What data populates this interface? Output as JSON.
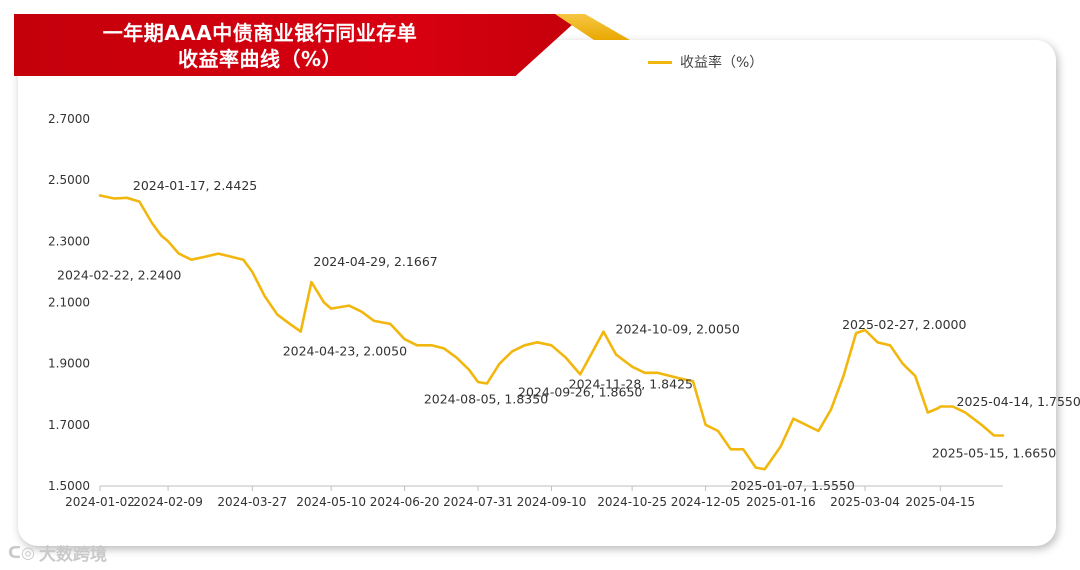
{
  "header": {
    "title_line1": "一年期AAA中债商业银行同业存单",
    "title_line2": "收益率曲线（%）"
  },
  "legend": {
    "label": "收益率（%）",
    "color": "#f2b70e"
  },
  "watermark": {
    "text": "大数跨境"
  },
  "chart_data": {
    "type": "line",
    "title": "一年期AAA中债商业银行同业存单收益率曲线（%）",
    "ylim": [
      1.5,
      2.7
    ],
    "y_ticks": [
      "2.7000",
      "2.5000",
      "2.3000",
      "2.1000",
      "1.9000",
      "1.7000",
      "1.5000"
    ],
    "x_ticks": [
      "2024-01-02",
      "2024-02-09",
      "2024-03-27",
      "2024-05-10",
      "2024-06-20",
      "2024-07-31",
      "2024-09-10",
      "2024-10-25",
      "2024-12-05",
      "2025-01-16",
      "2025-03-04",
      "2025-04-15"
    ],
    "grid": false,
    "legend_position": "top-right",
    "series": [
      {
        "name": "收益率（%）",
        "color": "#f2b70e",
        "x": [
          "2024-01-02",
          "2024-01-10",
          "2024-01-17",
          "2024-01-24",
          "2024-01-31",
          "2024-02-05",
          "2024-02-09",
          "2024-02-15",
          "2024-02-22",
          "2024-03-01",
          "2024-03-08",
          "2024-03-15",
          "2024-03-22",
          "2024-03-27",
          "2024-04-03",
          "2024-04-10",
          "2024-04-17",
          "2024-04-23",
          "2024-04-29",
          "2024-05-06",
          "2024-05-10",
          "2024-05-20",
          "2024-05-27",
          "2024-06-03",
          "2024-06-12",
          "2024-06-20",
          "2024-06-27",
          "2024-07-05",
          "2024-07-12",
          "2024-07-19",
          "2024-07-26",
          "2024-07-31",
          "2024-08-05",
          "2024-08-12",
          "2024-08-19",
          "2024-08-26",
          "2024-09-02",
          "2024-09-10",
          "2024-09-18",
          "2024-09-26",
          "2024-10-09",
          "2024-10-16",
          "2024-10-25",
          "2024-11-01",
          "2024-11-08",
          "2024-11-15",
          "2024-11-22",
          "2024-11-28",
          "2024-12-05",
          "2024-12-12",
          "2024-12-19",
          "2024-12-26",
          "2025-01-02",
          "2025-01-07",
          "2025-01-16",
          "2025-01-23",
          "2025-02-06",
          "2025-02-13",
          "2025-02-20",
          "2025-02-27",
          "2025-03-04",
          "2025-03-11",
          "2025-03-18",
          "2025-03-25",
          "2025-04-01",
          "2025-04-08",
          "2025-04-14",
          "2025-04-15",
          "2025-04-22",
          "2025-04-29",
          "2025-05-08",
          "2025-05-15",
          "2025-05-20"
        ],
        "values": [
          2.45,
          2.44,
          2.4425,
          2.43,
          2.36,
          2.32,
          2.3,
          2.26,
          2.24,
          2.25,
          2.26,
          2.25,
          2.24,
          2.2,
          2.12,
          2.06,
          2.03,
          2.005,
          2.1667,
          2.1,
          2.08,
          2.09,
          2.07,
          2.04,
          2.03,
          1.98,
          1.96,
          1.96,
          1.95,
          1.92,
          1.88,
          1.84,
          1.835,
          1.9,
          1.94,
          1.96,
          1.97,
          1.96,
          1.92,
          1.865,
          2.005,
          1.93,
          1.89,
          1.87,
          1.87,
          1.86,
          1.85,
          1.8425,
          1.7,
          1.68,
          1.62,
          1.62,
          1.56,
          1.555,
          1.63,
          1.72,
          1.68,
          1.75,
          1.86,
          2.0,
          2.01,
          1.97,
          1.96,
          1.9,
          1.86,
          1.74,
          1.755,
          1.76,
          1.76,
          1.74,
          1.7,
          1.665,
          1.665
        ]
      }
    ],
    "annotations": [
      {
        "text": "2024-01-17, 2.4425"
      },
      {
        "text": "2024-02-22, 2.2400"
      },
      {
        "text": "2024-04-29, 2.1667"
      },
      {
        "text": "2024-04-23, 2.0050"
      },
      {
        "text": "2024-08-05, 1.8350"
      },
      {
        "text": "2024-09-26, 1.8650"
      },
      {
        "text": "2024-10-09, 2.0050"
      },
      {
        "text": "2024-11-28, 1.8425"
      },
      {
        "text": "2025-01-07, 1.5550"
      },
      {
        "text": "2025-02-27, 2.0000"
      },
      {
        "text": "2025-04-14, 1.7550"
      },
      {
        "text": "2025-05-15, 1.6650"
      }
    ]
  }
}
